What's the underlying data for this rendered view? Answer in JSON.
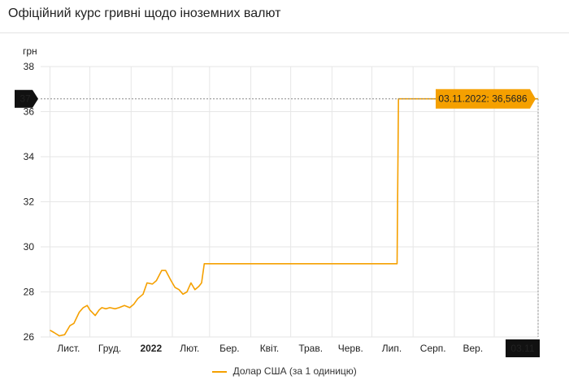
{
  "header": {
    "title": "Офіційний курс гривні щодо іноземних валют"
  },
  "chart_data": {
    "type": "line",
    "title": "Офіційний курс гривні щодо іноземних валют",
    "ylabel": "грн",
    "xlabel": "",
    "ylim": [
      26,
      38
    ],
    "yticks": [
      26,
      28,
      30,
      32,
      34,
      36,
      38
    ],
    "grid": true,
    "legend_position": "bottom",
    "x_ticks": [
      "Лист.",
      "Груд.",
      "2022",
      "Лют.",
      "Бер.",
      "Квіт.",
      "Трав.",
      "Черв.",
      "Лип.",
      "Серп.",
      "Вер."
    ],
    "x_tick_bold": "2022",
    "crosshair": {
      "y_value": "37",
      "x_value": "03.11",
      "tooltip": "03.11.2022: 36,5686",
      "y": 36.5686
    },
    "colors": {
      "series": "#f5a000",
      "tooltip_bg": "#f5a000",
      "label_bg": "#111111"
    },
    "series": [
      {
        "name": "Долар США (за 1 одиницю)",
        "x": [
          "2021-11-01",
          "2021-11-04",
          "2021-11-08",
          "2021-11-12",
          "2021-11-16",
          "2021-11-19",
          "2021-11-23",
          "2021-11-26",
          "2021-11-29",
          "2021-12-01",
          "2021-12-05",
          "2021-12-08",
          "2021-12-10",
          "2021-12-13",
          "2021-12-16",
          "2021-12-20",
          "2021-12-23",
          "2021-12-27",
          "2021-12-31",
          "2022-01-03",
          "2022-01-06",
          "2022-01-10",
          "2022-01-13",
          "2022-01-17",
          "2022-01-20",
          "2022-01-24",
          "2022-01-27",
          "2022-01-31",
          "2022-02-03",
          "2022-02-06",
          "2022-02-09",
          "2022-02-12",
          "2022-02-15",
          "2022-02-18",
          "2022-02-21",
          "2022-02-23",
          "2022-02-25",
          "2022-02-28",
          "2022-03-03",
          "2022-07-20",
          "2022-07-21",
          "2022-11-03"
        ],
        "y": [
          26.3,
          26.2,
          26.05,
          26.1,
          26.5,
          26.6,
          27.1,
          27.3,
          27.4,
          27.2,
          26.95,
          27.2,
          27.3,
          27.25,
          27.3,
          27.25,
          27.3,
          27.4,
          27.3,
          27.45,
          27.7,
          27.9,
          28.4,
          28.35,
          28.5,
          28.95,
          28.95,
          28.5,
          28.2,
          28.1,
          27.9,
          28.0,
          28.4,
          28.1,
          28.25,
          28.4,
          29.25,
          29.25,
          29.25,
          29.25,
          36.5686,
          36.5686
        ]
      }
    ]
  }
}
